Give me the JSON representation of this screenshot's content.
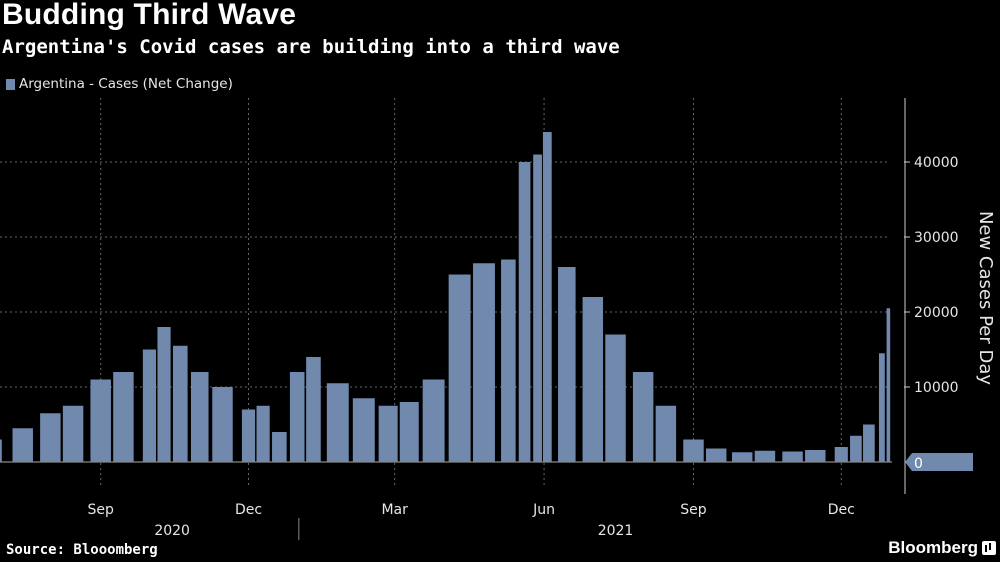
{
  "header": {
    "title": "Budding Third Wave",
    "subtitle": "Argentina's Covid cases are building into a third wave"
  },
  "legend": {
    "label": "Argentina - Cases (Net Change)"
  },
  "footer": {
    "source": "Source: Blooomberg",
    "brand": "Bloomberg"
  },
  "colors": {
    "series": "#7089ad",
    "background": "#000000",
    "grid": "#808080"
  },
  "chart_data": {
    "type": "bar",
    "title": "Budding Third Wave",
    "subtitle": "Argentina's Covid cases are building into a third wave",
    "ylabel": "New Cases Per Day",
    "xlabel": "",
    "ylim": [
      -3500,
      49000
    ],
    "yticks": [
      10000,
      20000,
      30000,
      40000
    ],
    "ytick_labels": [
      "10000",
      "20000",
      "30000",
      "40000"
    ],
    "last_value_label": "0",
    "legend_position": "top-left",
    "x_start": "2020-07-01",
    "x_end": "2021-12-31",
    "month_ticks": [
      {
        "label": "Sep",
        "month": "2020-09"
      },
      {
        "label": "Dec",
        "month": "2020-12"
      },
      {
        "label": "Mar",
        "month": "2021-03"
      },
      {
        "label": "Jun",
        "month": "2021-06"
      },
      {
        "label": "Sep",
        "month": "2021-09"
      },
      {
        "label": "Dec",
        "month": "2021-12"
      }
    ],
    "year_labels": [
      {
        "label": "2020",
        "center_month": "2020-10"
      },
      {
        "label": "2021",
        "center_month": "2021-07"
      }
    ],
    "series": [
      {
        "name": "Argentina - Cases (Net Change)",
        "frequency": "weekly peaks (approximate daily values)",
        "x": [
          "2020-07-01",
          "2020-07-15",
          "2020-08-01",
          "2020-08-15",
          "2020-09-01",
          "2020-09-15",
          "2020-10-01",
          "2020-10-10",
          "2020-10-20",
          "2020-11-01",
          "2020-11-15",
          "2020-12-01",
          "2020-12-10",
          "2020-12-20",
          "2020-12-31",
          "2021-01-10",
          "2021-01-25",
          "2021-02-10",
          "2021-02-25",
          "2021-03-10",
          "2021-03-25",
          "2021-04-10",
          "2021-04-25",
          "2021-05-10",
          "2021-05-20",
          "2021-05-28",
          "2021-06-03",
          "2021-06-15",
          "2021-07-01",
          "2021-07-15",
          "2021-08-01",
          "2021-08-15",
          "2021-09-01",
          "2021-09-15",
          "2021-10-01",
          "2021-10-15",
          "2021-11-01",
          "2021-11-15",
          "2021-12-01",
          "2021-12-10",
          "2021-12-18",
          "2021-12-26",
          "2021-12-30"
        ],
        "values": [
          3000,
          4500,
          6500,
          7500,
          11000,
          12000,
          15000,
          18000,
          15500,
          12000,
          10000,
          7000,
          7500,
          4000,
          12000,
          14000,
          10500,
          8500,
          7500,
          8000,
          11000,
          25000,
          26500,
          27000,
          40000,
          41000,
          44000,
          26000,
          22000,
          17000,
          12000,
          7500,
          3000,
          1800,
          1300,
          1500,
          1400,
          1600,
          2000,
          3500,
          5000,
          14500,
          20500
        ]
      }
    ]
  }
}
